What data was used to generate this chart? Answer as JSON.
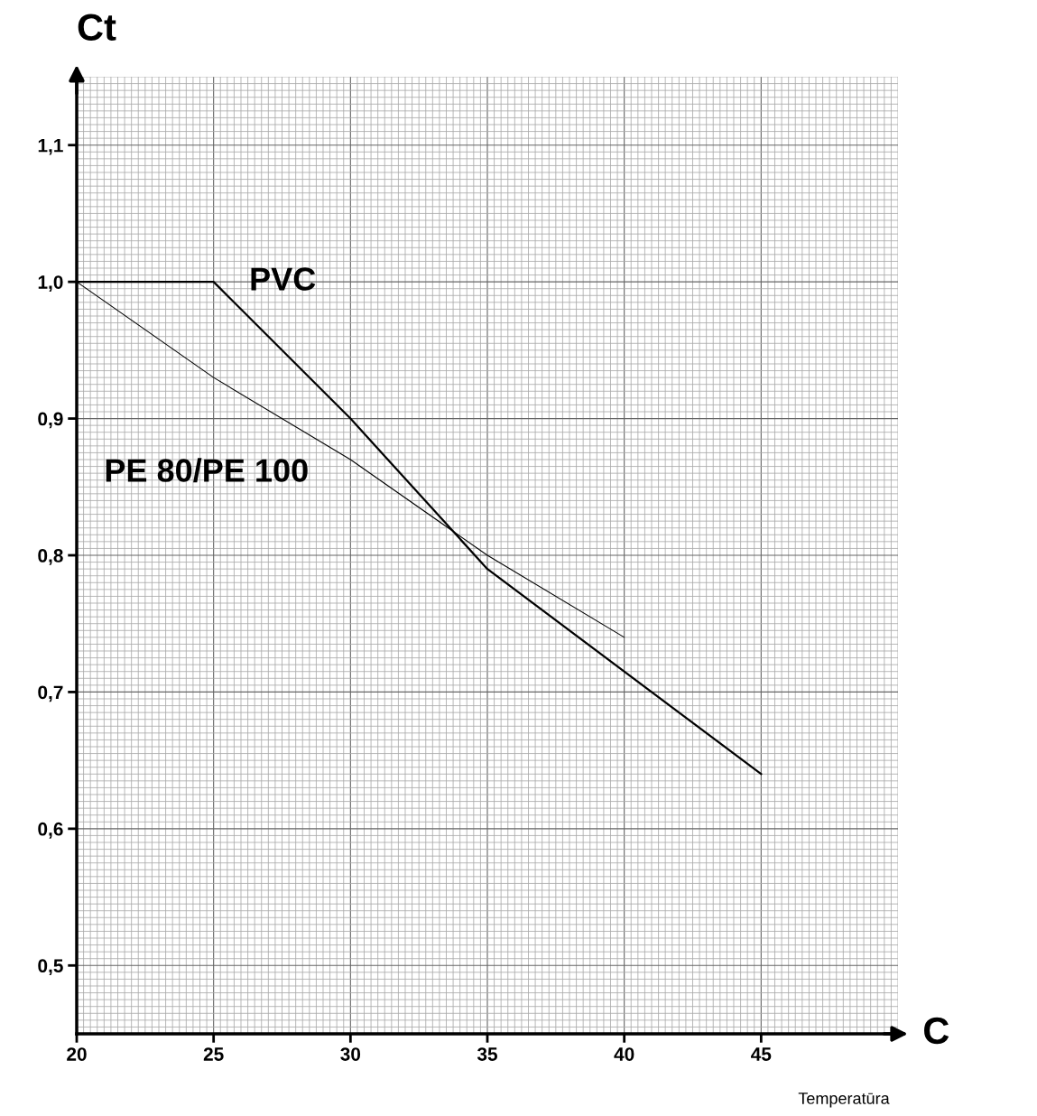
{
  "chart_data": {
    "type": "line",
    "xlabel": "C",
    "ylabel": "Ct",
    "annotations": [
      "Temperatūra"
    ],
    "xlim": [
      20,
      50
    ],
    "ylim": [
      0.45,
      1.15
    ],
    "xticks": [
      20,
      25,
      30,
      35,
      40,
      45
    ],
    "yticks": [
      {
        "value": 0.5,
        "label": "0,5"
      },
      {
        "value": 0.6,
        "label": "0,6"
      },
      {
        "value": 0.7,
        "label": "0,7"
      },
      {
        "value": 0.8,
        "label": "0,8"
      },
      {
        "value": 0.9,
        "label": "0,9"
      },
      {
        "value": 1.0,
        "label": "1,0"
      },
      {
        "value": 1.1,
        "label": "1,1"
      }
    ],
    "grid": true,
    "legend": false,
    "marker": "none",
    "line_style": "solid",
    "series": [
      {
        "name": "PVC",
        "color": "#000000",
        "x": [
          20,
          25,
          30,
          35,
          45
        ],
        "values": [
          1.0,
          1.0,
          0.9,
          0.79,
          0.64
        ]
      },
      {
        "name": "PE 80/PE 100",
        "color": "#000000",
        "x": [
          20,
          25,
          30,
          35,
          40
        ],
        "values": [
          1.0,
          0.93,
          0.87,
          0.8,
          0.74
        ]
      }
    ]
  }
}
